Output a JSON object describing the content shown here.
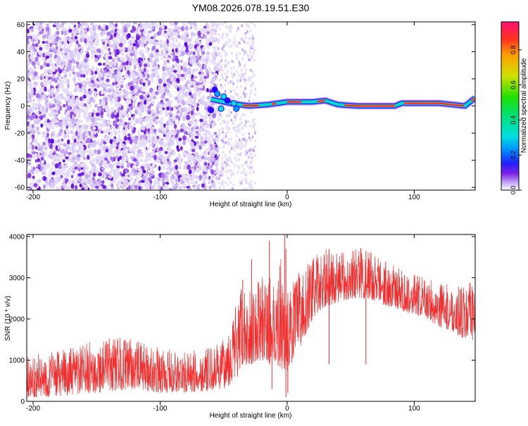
{
  "title": "YM08.2026.078.19.51.E30",
  "colorbar": {
    "label": "Normalized spectral amplitude",
    "ticks": [
      "0.0",
      "0.2",
      "0.4",
      "0.6",
      "0.8"
    ],
    "tick_values": [
      0.0,
      0.2,
      0.4,
      0.6,
      0.8
    ],
    "range": [
      0,
      0.96
    ],
    "colormap": [
      "#ffffff",
      "#d8c8f8",
      "#7b1fe6",
      "#2a00ff",
      "#00a0ff",
      "#00e0e0",
      "#00d000",
      "#d0e000",
      "#ffa000",
      "#ff2020",
      "#ff1070"
    ]
  },
  "chart_data": [
    {
      "type": "heatmap",
      "title": "YM08.2026.078.19.51.E30",
      "xlabel": "Height of straight line (km)",
      "ylabel": "Frequency (Hz)",
      "xlim": [
        -205,
        148
      ],
      "ylim": [
        -62,
        62
      ],
      "xticks": [
        -200,
        -100,
        0,
        100
      ],
      "yticks": [
        -60,
        -40,
        -20,
        0,
        20,
        40,
        60
      ],
      "description_points": {
        "noise_region_x": [
          -205,
          -55
        ],
        "signal_ridge": {
          "x": [
            -60,
            -45,
            -30,
            -15,
            0,
            10,
            20,
            30,
            40,
            55,
            70,
            85,
            90,
            100,
            110,
            120,
            130,
            140,
            148
          ],
          "y": [
            5,
            2,
            0,
            1,
            3,
            3,
            3,
            4,
            1,
            0,
            0,
            0,
            2,
            2,
            2,
            2,
            1,
            0,
            6
          ]
        }
      }
    },
    {
      "type": "line",
      "xlabel": "Height of straight line (km)",
      "ylabel": "SNR (10 * v/v)",
      "xlim": [
        -205,
        148
      ],
      "ylim": [
        0,
        4050
      ],
      "xticks": [
        -200,
        -100,
        0,
        100
      ],
      "yticks": [
        0,
        1000,
        2000,
        3000,
        4000
      ],
      "color": "#f03030",
      "envelope": {
        "x": [
          -205,
          -190,
          -170,
          -150,
          -135,
          -120,
          -100,
          -80,
          -60,
          -50,
          -40,
          -35,
          -30,
          -20,
          -10,
          -5,
          0,
          10,
          20,
          30,
          40,
          50,
          60,
          70,
          80,
          90,
          100,
          110,
          120,
          130,
          140,
          148
        ],
        "low": [
          100,
          100,
          150,
          200,
          250,
          300,
          200,
          200,
          250,
          300,
          500,
          800,
          900,
          1000,
          900,
          800,
          700,
          1300,
          2000,
          2300,
          2400,
          2500,
          2500,
          2400,
          2300,
          2200,
          2100,
          2000,
          1800,
          1700,
          1500,
          1400
        ],
        "high": [
          1100,
          1200,
          1300,
          1500,
          1600,
          1500,
          1300,
          1200,
          1300,
          1500,
          2500,
          2800,
          2800,
          3000,
          3100,
          3500,
          2700,
          3200,
          3500,
          3700,
          3600,
          3700,
          3800,
          3600,
          3400,
          3200,
          3100,
          3000,
          2900,
          2800,
          2800,
          3000
        ]
      }
    }
  ]
}
